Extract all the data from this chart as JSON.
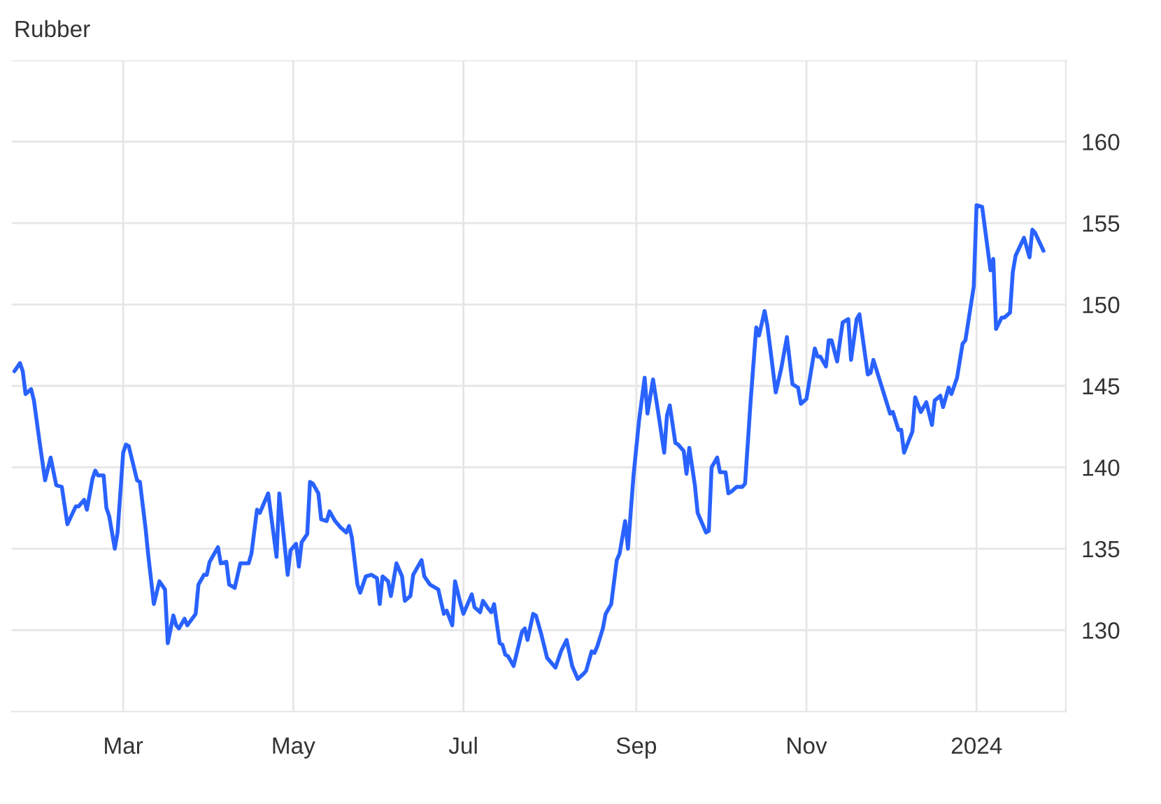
{
  "chart_data": {
    "type": "line",
    "title": "Rubber",
    "x": [
      "2023-01-21",
      "2023-01-23",
      "2023-01-24",
      "2023-01-25",
      "2023-01-27",
      "2023-01-28",
      "2023-01-30",
      "2023-02-01",
      "2023-02-03",
      "2023-02-05",
      "2023-02-07",
      "2023-02-09",
      "2023-02-12",
      "2023-02-13",
      "2023-02-15",
      "2023-02-16",
      "2023-02-18",
      "2023-02-19",
      "2023-02-20",
      "2023-02-22",
      "2023-02-23",
      "2023-02-24",
      "2023-02-26",
      "2023-02-27",
      "2023-03-01",
      "2023-03-02",
      "2023-03-03",
      "2023-03-06",
      "2023-03-07",
      "2023-03-09",
      "2023-03-10",
      "2023-03-12",
      "2023-03-14",
      "2023-03-16",
      "2023-03-17",
      "2023-03-19",
      "2023-03-20",
      "2023-03-21",
      "2023-03-23",
      "2023-03-24",
      "2023-03-27",
      "2023-03-28",
      "2023-03-30",
      "2023-03-31",
      "2023-04-01",
      "2023-04-04",
      "2023-04-05",
      "2023-04-07",
      "2023-04-08",
      "2023-04-10",
      "2023-04-12",
      "2023-04-15",
      "2023-04-16",
      "2023-04-18",
      "2023-04-19",
      "2023-04-22",
      "2023-04-25",
      "2023-04-26",
      "2023-04-29",
      "2023-04-30",
      "2023-05-02",
      "2023-05-03",
      "2023-05-04",
      "2023-05-06",
      "2023-05-07",
      "2023-05-08",
      "2023-05-10",
      "2023-05-11",
      "2023-05-13",
      "2023-05-14",
      "2023-05-16",
      "2023-05-18",
      "2023-05-20",
      "2023-05-21",
      "2023-05-22",
      "2023-05-24",
      "2023-05-25",
      "2023-05-27",
      "2023-05-29",
      "2023-05-31",
      "2023-06-01",
      "2023-06-02",
      "2023-06-04",
      "2023-06-05",
      "2023-06-07",
      "2023-06-09",
      "2023-06-10",
      "2023-06-12",
      "2023-06-13",
      "2023-06-16",
      "2023-06-17",
      "2023-06-19",
      "2023-06-22",
      "2023-06-24",
      "2023-06-25",
      "2023-06-27",
      "2023-06-28",
      "2023-06-30",
      "2023-07-01",
      "2023-07-04",
      "2023-07-05",
      "2023-07-07",
      "2023-07-08",
      "2023-07-10",
      "2023-07-11",
      "2023-07-12",
      "2023-07-14",
      "2023-07-15",
      "2023-07-16",
      "2023-07-17",
      "2023-07-19",
      "2023-07-20",
      "2023-07-22",
      "2023-07-23",
      "2023-07-24",
      "2023-07-26",
      "2023-07-27",
      "2023-07-29",
      "2023-07-31",
      "2023-08-03",
      "2023-08-05",
      "2023-08-07",
      "2023-08-09",
      "2023-08-11",
      "2023-08-13",
      "2023-08-14",
      "2023-08-16",
      "2023-08-17",
      "2023-08-18",
      "2023-08-20",
      "2023-08-21",
      "2023-08-23",
      "2023-08-25",
      "2023-08-26",
      "2023-08-28",
      "2023-08-29",
      "2023-08-31",
      "2023-09-02",
      "2023-09-04",
      "2023-09-05",
      "2023-09-07",
      "2023-09-09",
      "2023-09-11",
      "2023-09-12",
      "2023-09-13",
      "2023-09-15",
      "2023-09-16",
      "2023-09-18",
      "2023-09-19",
      "2023-09-20",
      "2023-09-22",
      "2023-09-23",
      "2023-09-26",
      "2023-09-27",
      "2023-09-28",
      "2023-09-30",
      "2023-10-01",
      "2023-10-03",
      "2023-10-04",
      "2023-10-05",
      "2023-10-07",
      "2023-10-09",
      "2023-10-10",
      "2023-10-12",
      "2023-10-14",
      "2023-10-15",
      "2023-10-17",
      "2023-10-18",
      "2023-10-21",
      "2023-10-23",
      "2023-10-25",
      "2023-10-27",
      "2023-10-29",
      "2023-10-30",
      "2023-11-01",
      "2023-11-04",
      "2023-11-05",
      "2023-11-06",
      "2023-11-08",
      "2023-11-09",
      "2023-11-10",
      "2023-11-12",
      "2023-11-14",
      "2023-11-16",
      "2023-11-17",
      "2023-11-19",
      "2023-11-20",
      "2023-11-23",
      "2023-11-24",
      "2023-11-25",
      "2023-11-27",
      "2023-12-01",
      "2023-12-02",
      "2023-12-04",
      "2023-12-05",
      "2023-12-06",
      "2023-12-09",
      "2023-12-10",
      "2023-12-12",
      "2023-12-14",
      "2023-12-16",
      "2023-12-17",
      "2023-12-19",
      "2023-12-20",
      "2023-12-22",
      "2023-12-23",
      "2023-12-25",
      "2023-12-27",
      "2023-12-28",
      "2023-12-31",
      "2024-01-01",
      "2024-01-03",
      "2024-01-06",
      "2024-01-07",
      "2024-01-08",
      "2024-01-10",
      "2024-01-11",
      "2024-01-13",
      "2024-01-14",
      "2024-01-15",
      "2024-01-18",
      "2024-01-20",
      "2024-01-21",
      "2024-01-22",
      "2024-01-25"
    ],
    "series": [
      {
        "color": "#2962ff",
        "values": [
          145.9,
          146.4,
          145.9,
          144.5,
          144.8,
          144.1,
          141.6,
          139.2,
          140.6,
          138.9,
          138.8,
          136.5,
          137.6,
          137.6,
          138.0,
          137.4,
          139.3,
          139.8,
          139.5,
          139.5,
          137.5,
          137.0,
          135.0,
          136.0,
          140.9,
          141.4,
          141.3,
          139.2,
          139.1,
          136.3,
          134.6,
          131.6,
          133.0,
          132.5,
          129.2,
          130.9,
          130.3,
          130.1,
          130.7,
          130.3,
          131.0,
          132.8,
          133.4,
          133.4,
          134.2,
          135.1,
          134.1,
          134.2,
          132.8,
          132.6,
          134.1,
          134.1,
          134.7,
          137.4,
          137.2,
          138.4,
          134.5,
          138.4,
          133.4,
          134.9,
          135.3,
          133.9,
          135.4,
          135.9,
          139.1,
          139.0,
          138.4,
          136.8,
          136.7,
          137.3,
          136.7,
          136.3,
          136.0,
          136.4,
          135.7,
          132.8,
          132.3,
          133.3,
          133.4,
          133.2,
          131.6,
          133.3,
          133.0,
          132.1,
          134.1,
          133.3,
          131.8,
          132.1,
          133.4,
          134.3,
          133.3,
          132.8,
          132.5,
          131.0,
          131.2,
          130.3,
          133.0,
          131.6,
          131.0,
          132.2,
          131.4,
          131.1,
          131.8,
          131.3,
          131.1,
          131.6,
          129.2,
          129.1,
          128.5,
          128.4,
          127.8,
          128.5,
          129.9,
          130.1,
          129.4,
          131.0,
          130.9,
          129.7,
          128.3,
          127.7,
          128.7,
          129.4,
          127.8,
          127.0,
          127.3,
          127.5,
          128.7,
          128.6,
          129.0,
          130.1,
          131.0,
          131.6,
          134.3,
          134.7,
          136.7,
          135.0,
          139.5,
          142.9,
          145.5,
          143.3,
          145.4,
          143.2,
          140.9,
          143.2,
          143.8,
          141.5,
          141.4,
          141.0,
          139.6,
          141.2,
          138.9,
          137.2,
          136.0,
          136.1,
          140.0,
          140.6,
          139.7,
          139.7,
          138.4,
          138.5,
          138.8,
          138.8,
          139.0,
          144.1,
          148.6,
          148.1,
          149.6,
          148.7,
          144.6,
          146.1,
          148.0,
          145.1,
          144.9,
          143.9,
          144.2,
          147.3,
          146.8,
          146.8,
          146.2,
          147.8,
          147.8,
          146.5,
          148.9,
          149.1,
          146.6,
          149.1,
          149.4,
          145.7,
          145.8,
          146.6,
          145.5,
          143.3,
          143.4,
          142.3,
          142.3,
          140.9,
          142.2,
          144.3,
          143.4,
          144.0,
          142.6,
          144.1,
          144.4,
          143.7,
          144.9,
          144.5,
          145.5,
          147.6,
          147.8,
          151.1,
          156.1,
          156.0,
          152.1,
          152.8,
          148.5,
          149.2,
          149.2,
          149.5,
          152.0,
          153.0,
          154.1,
          152.9,
          154.6,
          154.4,
          153.3
        ]
      }
    ],
    "xlim": [
      "2023-01-20",
      "2024-02-02"
    ],
    "xticks": [
      {
        "value": "2023-03-01",
        "label": "Mar"
      },
      {
        "value": "2023-05-01",
        "label": "May"
      },
      {
        "value": "2023-07-01",
        "label": "Jul"
      },
      {
        "value": "2023-09-01",
        "label": "Sep"
      },
      {
        "value": "2023-11-01",
        "label": "Nov"
      },
      {
        "value": "2024-01-01",
        "label": "2024"
      }
    ],
    "ylim": [
      125,
      165
    ],
    "yticks": [
      130,
      135,
      140,
      145,
      150,
      155,
      160,
      {
        "value": 165,
        "label": null
      }
    ],
    "grid": true,
    "legend": false,
    "line_style": "solid",
    "marker": "none"
  }
}
